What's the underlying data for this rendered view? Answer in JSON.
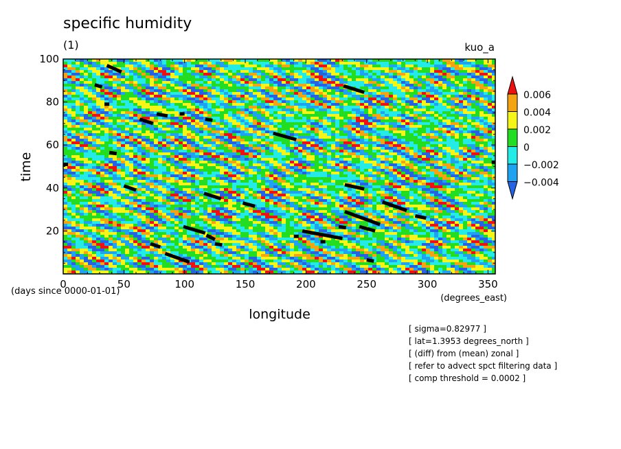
{
  "chart_data": {
    "type": "heatmap",
    "title": "specific humidity",
    "subtitle": "(1)",
    "tag": "kuo_a",
    "xlabel": "longitude",
    "ylabel": "time",
    "x_units": "(degrees_east)",
    "y_units": "(days since 0000-01-01)",
    "xlim": [
      0,
      356
    ],
    "ylim": [
      0,
      100
    ],
    "x_ticks": [
      "0",
      "50",
      "100",
      "150",
      "200",
      "250",
      "300",
      "350"
    ],
    "x_tick_values": [
      0,
      50,
      100,
      150,
      200,
      250,
      300,
      350
    ],
    "y_ticks": [
      "20",
      "40",
      "60",
      "80",
      "100"
    ],
    "y_tick_values": [
      20,
      40,
      60,
      80,
      100
    ],
    "colorbar": {
      "labels": [
        "0.006",
        "0.004",
        "0.002",
        "0",
        "−0.002",
        "−0.004"
      ],
      "levels": [
        -0.006,
        -0.004,
        -0.002,
        0,
        0.002,
        0.004,
        0.006
      ],
      "colors": [
        "#2563e3",
        "#1fa3f0",
        "#25ebe7",
        "#22dd22",
        "#f5f51a",
        "#f4a413",
        "#ee1111"
      ]
    },
    "black_streaks": [
      {
        "x": [
          36,
          48
        ],
        "y": [
          97,
          94
        ]
      },
      {
        "x": [
          26,
          32
        ],
        "y": [
          88,
          87
        ]
      },
      {
        "x": [
          34,
          38
        ],
        "y": [
          79,
          79
        ]
      },
      {
        "x": [
          63,
          74
        ],
        "y": [
          72,
          70
        ]
      },
      {
        "x": [
          77,
          86
        ],
        "y": [
          74.5,
          73.5
        ]
      },
      {
        "x": [
          96,
          100
        ],
        "y": [
          74.5,
          74.5
        ]
      },
      {
        "x": [
          117,
          123
        ],
        "y": [
          72,
          71.5
        ]
      },
      {
        "x": [
          173,
          192
        ],
        "y": [
          65.5,
          62.5
        ]
      },
      {
        "x": [
          231,
          248
        ],
        "y": [
          87.5,
          84.5
        ]
      },
      {
        "x": [
          38,
          44
        ],
        "y": [
          56.5,
          56
        ]
      },
      {
        "x": [
          0,
          4
        ],
        "y": [
          51,
          51
        ]
      },
      {
        "x": [
          50,
          60
        ],
        "y": [
          41,
          39
        ]
      },
      {
        "x": [
          116,
          130
        ],
        "y": [
          37.5,
          35
        ]
      },
      {
        "x": [
          148,
          158
        ],
        "y": [
          33,
          31.5
        ]
      },
      {
        "x": [
          232,
          248
        ],
        "y": [
          41.5,
          39.5
        ]
      },
      {
        "x": [
          263,
          283
        ],
        "y": [
          33.5,
          29.5
        ]
      },
      {
        "x": [
          290,
          299
        ],
        "y": [
          27,
          26
        ]
      },
      {
        "x": [
          232,
          261
        ],
        "y": [
          29,
          23
        ]
      },
      {
        "x": [
          244,
          257
        ],
        "y": [
          22,
          20
        ]
      },
      {
        "x": [
          227,
          233
        ],
        "y": [
          22,
          21.5
        ]
      },
      {
        "x": [
          99,
          117
        ],
        "y": [
          22,
          19
        ]
      },
      {
        "x": [
          118,
          125
        ],
        "y": [
          18,
          16
        ]
      },
      {
        "x": [
          125,
          131
        ],
        "y": [
          14,
          13.5
        ]
      },
      {
        "x": [
          190,
          194
        ],
        "y": [
          17.5,
          17.5
        ]
      },
      {
        "x": [
          197,
          230
        ],
        "y": [
          20,
          16.5
        ]
      },
      {
        "x": [
          212,
          216
        ],
        "y": [
          15,
          15
        ]
      },
      {
        "x": [
          72,
          80
        ],
        "y": [
          14,
          12.5
        ]
      },
      {
        "x": [
          84,
          104
        ],
        "y": [
          9.5,
          5.5
        ]
      },
      {
        "x": [
          250,
          256
        ],
        "y": [
          6.5,
          6
        ]
      },
      {
        "x": [
          353,
          356
        ],
        "y": [
          52,
          52
        ]
      }
    ]
  },
  "notes": [
    "[ sigma=0.82977 ]",
    "[ lat=1.3953 degrees_north ]",
    "[ (diff) from (mean) zonal ]",
    "[ refer to advect spct filtering data ]",
    "[ comp threshold = 0.0002 ]"
  ]
}
